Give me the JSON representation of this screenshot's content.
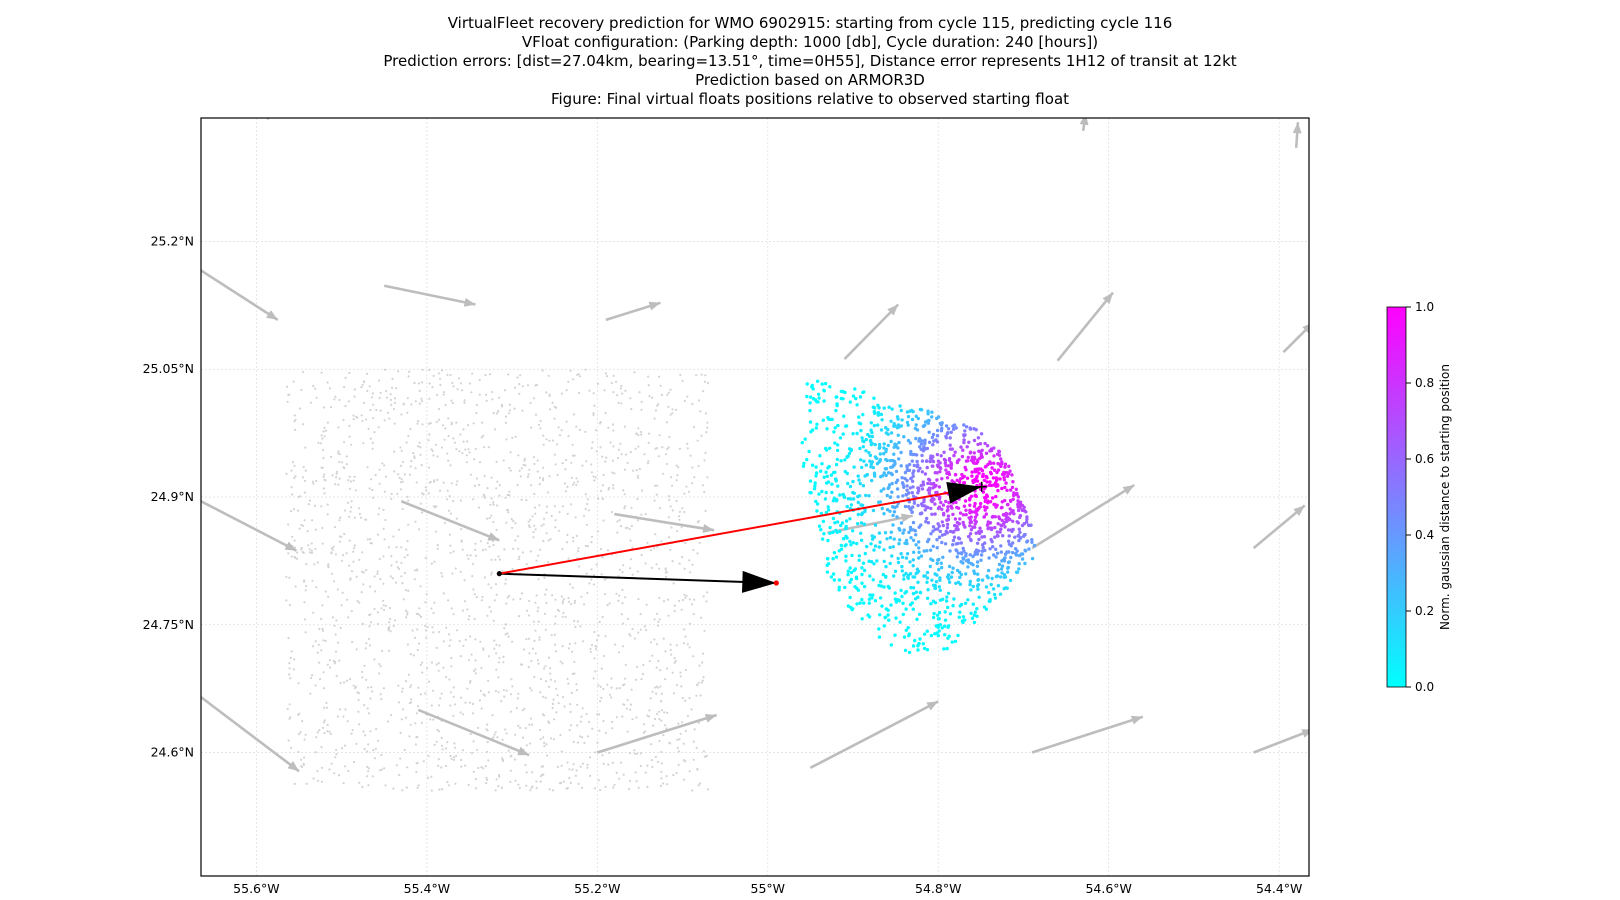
{
  "title_lines": [
    "VirtualFleet recovery prediction for WMO 6902915: starting from cycle 115, predicting cycle 116",
    "VFloat configuration: (Parking depth: 1000 [db], Cycle duration: 240 [hours])",
    "Prediction errors: [dist=27.04km, bearing=13.51°, time=0H55], Distance error represents 1H12 of transit at 12kt",
    "Prediction based on ARMOR3D",
    "Figure: Final virtual floats positions relative to observed starting float"
  ],
  "map": {
    "lon_range": [
      -55.665,
      -54.365
    ],
    "lat_range": [
      24.455,
      25.345
    ],
    "lon_ticks": [
      {
        "value": -55.6,
        "label": "55.6°W"
      },
      {
        "value": -55.4,
        "label": "55.4°W"
      },
      {
        "value": -55.2,
        "label": "55.2°W"
      },
      {
        "value": -55.0,
        "label": "55°W"
      },
      {
        "value": -54.8,
        "label": "54.8°W"
      },
      {
        "value": -54.6,
        "label": "54.6°W"
      },
      {
        "value": -54.4,
        "label": "54.4°W"
      }
    ],
    "lat_ticks": [
      {
        "value": 25.2,
        "label": "25.2°N"
      },
      {
        "value": 25.05,
        "label": "25.05°N"
      },
      {
        "value": 24.9,
        "label": "24.9°N"
      },
      {
        "value": 24.75,
        "label": "24.75°N"
      },
      {
        "value": 24.6,
        "label": "24.6°N"
      }
    ],
    "grid": true
  },
  "chart_data": {
    "type": "scatter",
    "starting_position": {
      "lon": -55.315,
      "lat": 24.81
    },
    "observed_next_position": {
      "lon": -54.99,
      "lat": 24.799
    },
    "predicted_position": {
      "lon": -54.749,
      "lat": 24.912
    },
    "initial_deployment_box": {
      "lon": [
        -55.565,
        -55.07
      ],
      "lat": [
        24.555,
        25.05
      ]
    },
    "final_cloud_extent": {
      "lon": [
        -54.95,
        -54.685
      ],
      "lat": [
        24.715,
        25.015
      ]
    },
    "n_virtual_floats": 2000,
    "velocity_arrows": [
      {
        "lon": -55.6,
        "lat": 25.352,
        "u": 0.015,
        "v": -0.008
      },
      {
        "lon": -54.63,
        "lat": 25.33,
        "u": 0.003,
        "v": 0.02
      },
      {
        "lon": -54.38,
        "lat": 25.31,
        "u": 0.002,
        "v": 0.03
      },
      {
        "lon": -55.665,
        "lat": 25.166,
        "u": 0.09,
        "v": -0.058
      },
      {
        "lon": -55.45,
        "lat": 25.148,
        "u": 0.107,
        "v": -0.022
      },
      {
        "lon": -55.19,
        "lat": 25.108,
        "u": 0.064,
        "v": 0.02
      },
      {
        "lon": -54.91,
        "lat": 25.062,
        "u": 0.063,
        "v": 0.064
      },
      {
        "lon": -54.66,
        "lat": 25.06,
        "u": 0.065,
        "v": 0.08
      },
      {
        "lon": -54.395,
        "lat": 25.07,
        "u": 0.035,
        "v": 0.035
      },
      {
        "lon": -55.665,
        "lat": 24.895,
        "u": 0.112,
        "v": -0.058
      },
      {
        "lon": -55.43,
        "lat": 24.895,
        "u": 0.115,
        "v": -0.046
      },
      {
        "lon": -55.18,
        "lat": 24.88,
        "u": 0.117,
        "v": -0.019
      },
      {
        "lon": -54.93,
        "lat": 24.858,
        "u": 0.1,
        "v": 0.02
      },
      {
        "lon": -54.69,
        "lat": 24.84,
        "u": 0.12,
        "v": 0.074
      },
      {
        "lon": -54.43,
        "lat": 24.84,
        "u": 0.06,
        "v": 0.05
      },
      {
        "lon": -55.665,
        "lat": 24.665,
        "u": 0.115,
        "v": -0.087
      },
      {
        "lon": -55.41,
        "lat": 24.65,
        "u": 0.13,
        "v": -0.053
      },
      {
        "lon": -55.2,
        "lat": 24.6,
        "u": 0.14,
        "v": 0.044
      },
      {
        "lon": -54.95,
        "lat": 24.582,
        "u": 0.15,
        "v": 0.078
      },
      {
        "lon": -54.69,
        "lat": 24.6,
        "u": 0.13,
        "v": 0.042
      },
      {
        "lon": -54.43,
        "lat": 24.6,
        "u": 0.07,
        "v": 0.027
      }
    ]
  },
  "colorbar": {
    "label": "Norm. gaussian distance to starting position",
    "range": [
      0.0,
      1.0
    ],
    "ticks": [
      "0.0",
      "0.2",
      "0.4",
      "0.6",
      "0.8",
      "1.0"
    ],
    "colormap": "cool",
    "low_color": "#00ffff",
    "high_color": "#ff00ff"
  },
  "colors": {
    "start_to_predicted_line": "#ff0000",
    "start_to_observed_line": "#000000",
    "observed_marker": "#ff0000",
    "initial_floats": "#d3d3d3",
    "velocity_arrows": "#bdbdbd",
    "grid": "#dddddd"
  }
}
